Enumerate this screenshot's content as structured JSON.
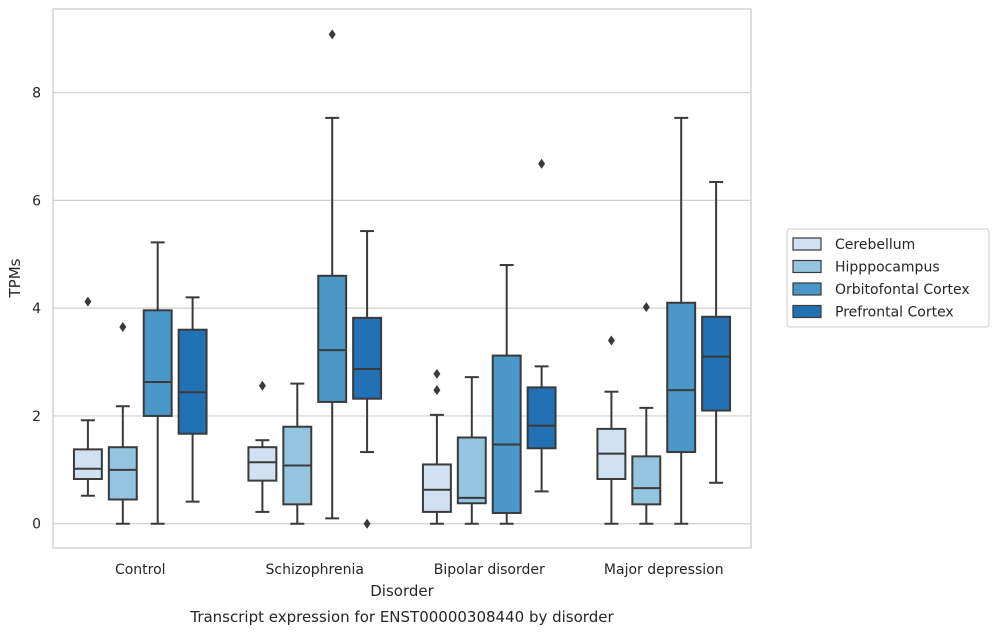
{
  "chart_data": {
    "type": "boxplot",
    "title": "",
    "caption": "Transcript expression for ENST00000308440 by disorder",
    "xlabel": "Disorder",
    "ylabel": "TPMs",
    "ylim": [
      -0.45,
      9.55
    ],
    "yticks": [
      0,
      2,
      4,
      6,
      8
    ],
    "grid": "horizontal",
    "legend_position": "right",
    "categories": [
      "Control",
      "Schizophrenia",
      "Bipolar disorder",
      "Major depression"
    ],
    "series": [
      {
        "name": "Cerebellum",
        "color": "#d0e1f2",
        "boxes": [
          {
            "whislo": 0.52,
            "q1": 0.83,
            "med": 1.02,
            "q3": 1.38,
            "whishi": 1.92,
            "fliers": [
              4.12
            ]
          },
          {
            "whislo": 0.22,
            "q1": 0.8,
            "med": 1.14,
            "q3": 1.42,
            "whishi": 1.55,
            "fliers": [
              2.56
            ]
          },
          {
            "whislo": 0.0,
            "q1": 0.22,
            "med": 0.63,
            "q3": 1.1,
            "whishi": 2.02,
            "fliers": [
              2.48,
              2.78
            ]
          },
          {
            "whislo": 0.0,
            "q1": 0.83,
            "med": 1.3,
            "q3": 1.76,
            "whishi": 2.45,
            "fliers": [
              3.4
            ]
          }
        ]
      },
      {
        "name": "Hipppocampus",
        "color": "#94c4df",
        "boxes": [
          {
            "whislo": 0.0,
            "q1": 0.45,
            "med": 1.0,
            "q3": 1.42,
            "whishi": 2.18,
            "fliers": [
              3.65
            ]
          },
          {
            "whislo": 0.0,
            "q1": 0.36,
            "med": 1.08,
            "q3": 1.8,
            "whishi": 2.6,
            "fliers": []
          },
          {
            "whislo": 0.0,
            "q1": 0.38,
            "med": 0.48,
            "q3": 1.6,
            "whishi": 2.72,
            "fliers": []
          },
          {
            "whislo": 0.0,
            "q1": 0.36,
            "med": 0.66,
            "q3": 1.25,
            "whishi": 2.15,
            "fliers": [
              4.02
            ]
          }
        ]
      },
      {
        "name": "Orbitofontal Cortex",
        "color": "#4a98c9",
        "boxes": [
          {
            "whislo": 0.0,
            "q1": 2.0,
            "med": 2.63,
            "q3": 3.96,
            "whishi": 5.22,
            "fliers": []
          },
          {
            "whislo": 0.1,
            "q1": 2.26,
            "med": 3.22,
            "q3": 4.6,
            "whishi": 7.53,
            "fliers": [
              9.08
            ]
          },
          {
            "whislo": 0.0,
            "q1": 0.2,
            "med": 1.47,
            "q3": 3.12,
            "whishi": 4.8,
            "fliers": []
          },
          {
            "whislo": 0.0,
            "q1": 1.33,
            "med": 2.48,
            "q3": 4.1,
            "whishi": 7.53,
            "fliers": []
          }
        ]
      },
      {
        "name": "Prefrontal Cortex",
        "color": "#2171b5",
        "boxes": [
          {
            "whislo": 0.41,
            "q1": 1.67,
            "med": 2.44,
            "q3": 3.6,
            "whishi": 4.2,
            "fliers": []
          },
          {
            "whislo": 1.33,
            "q1": 2.32,
            "med": 2.87,
            "q3": 3.82,
            "whishi": 5.43,
            "fliers": [
              0.0
            ]
          },
          {
            "whislo": 0.6,
            "q1": 1.4,
            "med": 1.82,
            "q3": 2.53,
            "whishi": 2.92,
            "fliers": [
              6.68
            ]
          },
          {
            "whislo": 0.76,
            "q1": 2.1,
            "med": 3.1,
            "q3": 3.84,
            "whishi": 6.34,
            "fliers": []
          }
        ]
      }
    ]
  }
}
